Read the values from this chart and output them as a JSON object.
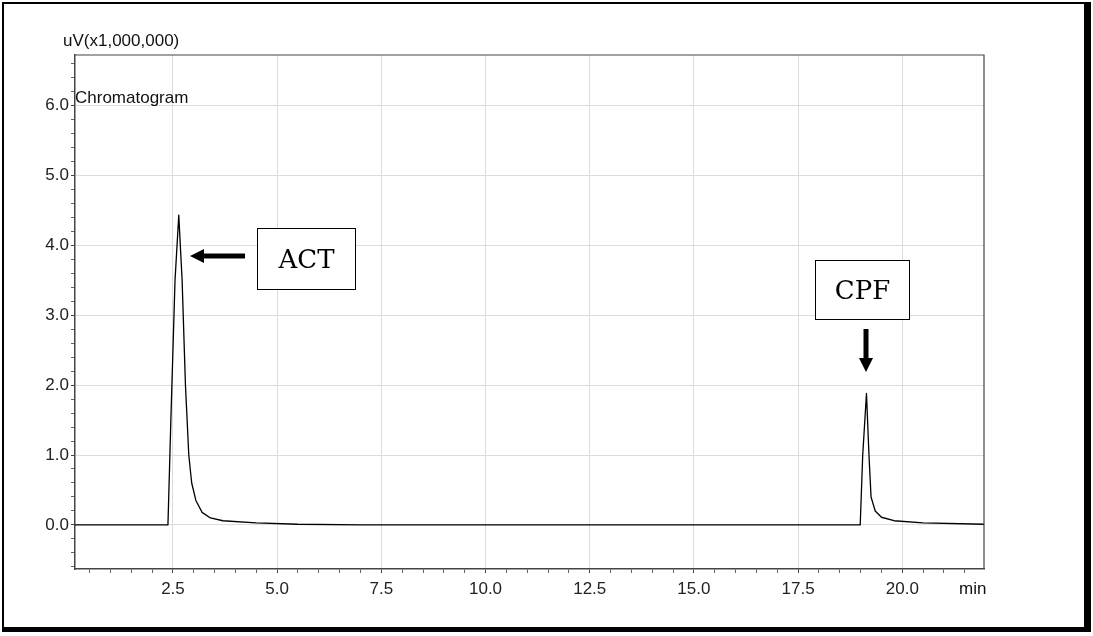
{
  "chart_data": {
    "type": "line",
    "xlabel": "min",
    "ylabel": "uV(x1,000,000)",
    "x": [
      0.15,
      2.38,
      2.45,
      2.55,
      2.64,
      2.72,
      2.8,
      2.88,
      2.95,
      3.05,
      3.2,
      3.4,
      3.7,
      4.5,
      5.5,
      7.0,
      18.99,
      19.05,
      19.14,
      19.2,
      19.25,
      19.35,
      19.5,
      19.8,
      20.5,
      21.96
    ],
    "series": [
      {
        "color": "#000000",
        "values": [
          0,
          0,
          1.5,
          3.5,
          4.43,
          3.5,
          2.0,
          1.0,
          0.6,
          0.35,
          0.18,
          0.1,
          0.06,
          0.03,
          0.01,
          0,
          0,
          1.0,
          1.88,
          1.0,
          0.4,
          0.2,
          0.11,
          0.06,
          0.03,
          0.01
        ]
      }
    ],
    "xlim": [
      0.15,
      21.96
    ],
    "xticks": [
      {
        "value": 0.5,
        "label": null
      },
      {
        "value": 1.0,
        "label": null
      },
      {
        "value": 1.5,
        "label": null
      },
      {
        "value": 2.0,
        "label": null
      },
      {
        "value": 2.5,
        "label": "2.5"
      },
      {
        "value": 3.0,
        "label": null
      },
      {
        "value": 3.5,
        "label": null
      },
      {
        "value": 4.0,
        "label": null
      },
      {
        "value": 4.5,
        "label": null
      },
      {
        "value": 5.0,
        "label": "5.0"
      },
      {
        "value": 5.5,
        "label": null
      },
      {
        "value": 6.0,
        "label": null
      },
      {
        "value": 6.5,
        "label": null
      },
      {
        "value": 7.0,
        "label": null
      },
      {
        "value": 7.5,
        "label": "7.5"
      },
      {
        "value": 8.0,
        "label": null
      },
      {
        "value": 8.5,
        "label": null
      },
      {
        "value": 9.0,
        "label": null
      },
      {
        "value": 9.5,
        "label": null
      },
      {
        "value": 10.0,
        "label": "10.0"
      },
      {
        "value": 10.5,
        "label": null
      },
      {
        "value": 11.0,
        "label": null
      },
      {
        "value": 11.5,
        "label": null
      },
      {
        "value": 12.0,
        "label": null
      },
      {
        "value": 12.5,
        "label": "12.5"
      },
      {
        "value": 13.0,
        "label": null
      },
      {
        "value": 13.5,
        "label": null
      },
      {
        "value": 14.0,
        "label": null
      },
      {
        "value": 14.5,
        "label": null
      },
      {
        "value": 15.0,
        "label": "15.0"
      },
      {
        "value": 15.5,
        "label": null
      },
      {
        "value": 16.0,
        "label": null
      },
      {
        "value": 16.5,
        "label": null
      },
      {
        "value": 17.0,
        "label": null
      },
      {
        "value": 17.5,
        "label": "17.5"
      },
      {
        "value": 18.0,
        "label": null
      },
      {
        "value": 18.5,
        "label": null
      },
      {
        "value": 19.0,
        "label": null
      },
      {
        "value": 19.5,
        "label": null
      },
      {
        "value": 20.0,
        "label": "20.0"
      },
      {
        "value": 20.5,
        "label": null
      },
      {
        "value": 21.0,
        "label": null
      },
      {
        "value": 21.5,
        "label": null
      }
    ],
    "ylim": [
      -0.63,
      6.72
    ],
    "yticks": [
      {
        "value": -0.6,
        "label": null
      },
      {
        "value": -0.4,
        "label": null
      },
      {
        "value": -0.2,
        "label": null
      },
      {
        "value": 0,
        "label": "0.0"
      },
      {
        "value": 0.2,
        "label": null
      },
      {
        "value": 0.4,
        "label": null
      },
      {
        "value": 0.6,
        "label": null
      },
      {
        "value": 0.8,
        "label": null
      },
      {
        "value": 1,
        "label": "1.0"
      },
      {
        "value": 1.2,
        "label": null
      },
      {
        "value": 1.4,
        "label": null
      },
      {
        "value": 1.6,
        "label": null
      },
      {
        "value": 1.8,
        "label": null
      },
      {
        "value": 2,
        "label": "2.0"
      },
      {
        "value": 2.2,
        "label": null
      },
      {
        "value": 2.4,
        "label": null
      },
      {
        "value": 2.6,
        "label": null
      },
      {
        "value": 2.8,
        "label": null
      },
      {
        "value": 3,
        "label": "3.0"
      },
      {
        "value": 3.2,
        "label": null
      },
      {
        "value": 3.4,
        "label": null
      },
      {
        "value": 3.6,
        "label": null
      },
      {
        "value": 3.8,
        "label": null
      },
      {
        "value": 4,
        "label": "4.0"
      },
      {
        "value": 4.2,
        "label": null
      },
      {
        "value": 4.4,
        "label": null
      },
      {
        "value": 4.6,
        "label": null
      },
      {
        "value": 4.8,
        "label": null
      },
      {
        "value": 5,
        "label": "5.0"
      },
      {
        "value": 5.2,
        "label": null
      },
      {
        "value": 5.4,
        "label": null
      },
      {
        "value": 5.6,
        "label": null
      },
      {
        "value": 5.8,
        "label": null
      },
      {
        "value": 6,
        "label": "6.0"
      },
      {
        "value": 6.2,
        "label": null
      },
      {
        "value": 6.4,
        "label": null
      },
      {
        "value": 6.6,
        "label": null
      }
    ],
    "grid": true,
    "legend": false,
    "marker": "none",
    "line_style": "solid",
    "annotations": [
      "Chromatogram",
      "ACT",
      "CPF"
    ]
  }
}
